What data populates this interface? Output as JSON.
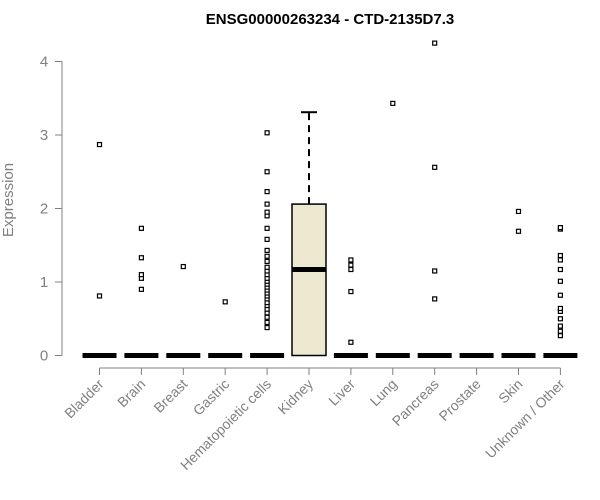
{
  "chart_data": {
    "type": "box",
    "title": "ENSG00000263234 - CTD-2135D7.3",
    "xlabel": "",
    "ylabel": "Expression",
    "ylim": [
      0,
      4.3
    ],
    "yticks": [
      0,
      1,
      2,
      3,
      4
    ],
    "categories": [
      "Bladder",
      "Brain",
      "Breast",
      "Gastric",
      "Hematopoietic cells",
      "Kidney",
      "Liver",
      "Lung",
      "Pancreas",
      "Prostate",
      "Skin",
      "Unknown / Other"
    ],
    "box_fill": "#ede8d0",
    "boxes": [
      {
        "category": "Bladder",
        "q1": 0,
        "median": 0,
        "q3": 0,
        "whisker_low": 0,
        "whisker_high": 0,
        "outliers": [
          0.81,
          2.87
        ]
      },
      {
        "category": "Brain",
        "q1": 0,
        "median": 0,
        "q3": 0,
        "whisker_low": 0,
        "whisker_high": 0,
        "outliers": [
          0.9,
          1.05,
          1.1,
          1.33,
          1.73
        ]
      },
      {
        "category": "Breast",
        "q1": 0,
        "median": 0,
        "q3": 0,
        "whisker_low": 0,
        "whisker_high": 0,
        "outliers": [
          1.21
        ]
      },
      {
        "category": "Gastric",
        "q1": 0,
        "median": 0,
        "q3": 0,
        "whisker_low": 0,
        "whisker_high": 0,
        "outliers": [
          0.73
        ]
      },
      {
        "category": "Hematopoietic cells",
        "q1": 0,
        "median": 0,
        "q3": 0,
        "whisker_low": 0,
        "whisker_high": 0,
        "outliers": [
          0.38,
          0.45,
          0.52,
          0.58,
          0.63,
          0.68,
          0.72,
          0.77,
          0.81,
          0.85,
          0.89,
          0.93,
          0.97,
          1.01,
          1.05,
          1.1,
          1.15,
          1.2,
          1.28,
          1.35,
          1.43,
          1.58,
          1.73,
          1.9,
          1.95,
          2.06,
          2.23,
          2.5,
          3.03
        ]
      },
      {
        "category": "Kidney",
        "q1": 0,
        "median": 1.17,
        "q3": 2.06,
        "whisker_low": 0,
        "whisker_high": 3.31,
        "outliers": []
      },
      {
        "category": "Liver",
        "q1": 0,
        "median": 0,
        "q3": 0,
        "whisker_low": 0,
        "whisker_high": 0,
        "outliers": [
          0.18,
          0.87,
          1.17,
          1.23,
          1.3
        ]
      },
      {
        "category": "Lung",
        "q1": 0,
        "median": 0,
        "q3": 0,
        "whisker_low": 0,
        "whisker_high": 0,
        "outliers": [
          3.43
        ]
      },
      {
        "category": "Pancreas",
        "q1": 0,
        "median": 0,
        "q3": 0,
        "whisker_low": 0,
        "whisker_high": 0,
        "outliers": [
          0.77,
          1.15,
          2.56,
          4.25
        ]
      },
      {
        "category": "Prostate",
        "q1": 0,
        "median": 0,
        "q3": 0,
        "whisker_low": 0,
        "whisker_high": 0,
        "outliers": []
      },
      {
        "category": "Skin",
        "q1": 0,
        "median": 0,
        "q3": 0,
        "whisker_low": 0,
        "whisker_high": 0,
        "outliers": [
          1.69,
          1.96
        ]
      },
      {
        "category": "Unknown / Other",
        "q1": 0,
        "median": 0,
        "q3": 0,
        "whisker_low": 0,
        "whisker_high": 0,
        "outliers": [
          0.27,
          0.33,
          0.4,
          0.5,
          0.6,
          0.64,
          0.82,
          1.01,
          1.17,
          1.3,
          1.36,
          1.72,
          1.74
        ]
      }
    ]
  }
}
